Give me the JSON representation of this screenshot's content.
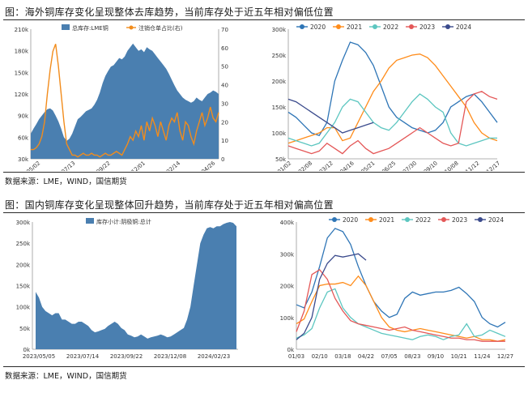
{
  "figure1": {
    "caption": "图：海外铜库存变化呈现整体去库趋势，当前库存处于近五年相对偏低位置",
    "source": "数据来源：LME，WIND，国信期货"
  },
  "figure2": {
    "caption": "图：国内铜库存变化呈现整体回升趋势，当前库存处于近五年相对偏高位置",
    "source": "数据来源：LME，WIND，国信期货"
  },
  "colors": {
    "blue_area": "#4a7fb0",
    "orange": "#f28c1c",
    "s2020": "#2e75b6",
    "s2021": "#ff8c1a",
    "s2022": "#5cc6c0",
    "s2023": "#e45757",
    "s2024": "#3a4a8c"
  },
  "chart_data": [
    {
      "id": "lme_total",
      "type": "area",
      "title": "",
      "y_unit": "k",
      "ylim": [
        30,
        210
      ],
      "y_ticks": [
        "30k",
        "60k",
        "90k",
        "120k",
        "150k",
        "180k",
        "210k"
      ],
      "y2lim": [
        0,
        70
      ],
      "y2_ticks": [
        "0",
        "10",
        "20",
        "30",
        "40",
        "50",
        "60",
        "70"
      ],
      "x_ticks": [
        "2023/05/02",
        "2023/07/13",
        "2023/09/22",
        "2023/12/01",
        "2024/02/14",
        "2024/04/26"
      ],
      "legend": [
        "总库存:LME铜",
        "注销仓单占比(右)"
      ],
      "series": [
        {
          "name": "总库存:LME铜",
          "axis": "left",
          "type": "area",
          "values": [
            65,
            72,
            78,
            85,
            90,
            95,
            99,
            100,
            97,
            90,
            82,
            72,
            60,
            55,
            58,
            65,
            75,
            85,
            88,
            92,
            96,
            98,
            100,
            105,
            112,
            122,
            135,
            145,
            152,
            158,
            160,
            165,
            170,
            168,
            172,
            180,
            185,
            190,
            185,
            180,
            182,
            178,
            185,
            182,
            180,
            175,
            170,
            165,
            160,
            155,
            148,
            140,
            132,
            125,
            120,
            115,
            112,
            110,
            108,
            110,
            115,
            112,
            110,
            115,
            120,
            122,
            125,
            123,
            120
          ]
        },
        {
          "name": "注销仓单占比(右)",
          "axis": "right",
          "type": "line",
          "values": [
            5,
            5,
            6,
            8,
            12,
            20,
            35,
            48,
            58,
            62,
            50,
            35,
            20,
            8,
            5,
            2,
            2,
            1,
            2,
            3,
            2,
            2,
            3,
            2,
            2,
            1,
            2,
            3,
            2,
            2,
            3,
            4,
            3,
            2,
            5,
            8,
            12,
            10,
            15,
            12,
            18,
            10,
            20,
            15,
            22,
            18,
            12,
            20,
            15,
            10,
            18,
            22,
            20,
            25,
            15,
            10,
            20,
            18,
            12,
            8,
            15,
            20,
            25,
            18,
            22,
            28,
            22,
            20,
            25
          ]
        }
      ]
    },
    {
      "id": "lme_seasonal",
      "type": "line",
      "ylim": [
        50,
        300
      ],
      "y_ticks": [
        "50k",
        "100k",
        "150k",
        "200k",
        "250k",
        "300k"
      ],
      "x_ticks": [
        "01/02",
        "02/08",
        "03/12",
        "04/16",
        "05/21",
        "06/25",
        "07/30",
        "09/10",
        "10/08",
        "11/12",
        "12/17"
      ],
      "series": [
        {
          "name": "2020",
          "values": [
            140,
            130,
            115,
            100,
            95,
            120,
            200,
            240,
            275,
            270,
            255,
            230,
            190,
            150,
            130,
            120,
            110,
            105,
            100,
            105,
            120,
            150,
            160,
            170,
            175,
            160,
            140,
            120
          ]
        },
        {
          "name": "2021",
          "values": [
            80,
            85,
            90,
            95,
            100,
            110,
            110,
            85,
            90,
            120,
            150,
            180,
            200,
            225,
            240,
            245,
            250,
            252,
            245,
            230,
            210,
            190,
            170,
            150,
            120,
            100,
            90,
            85
          ]
        },
        {
          "name": "2022",
          "values": [
            90,
            85,
            80,
            75,
            80,
            100,
            120,
            150,
            165,
            160,
            140,
            120,
            110,
            105,
            120,
            140,
            160,
            175,
            165,
            150,
            140,
            100,
            80,
            75,
            80,
            85,
            90,
            90
          ]
        },
        {
          "name": "2023",
          "values": [
            75,
            70,
            65,
            60,
            65,
            80,
            70,
            60,
            75,
            85,
            70,
            60,
            65,
            70,
            80,
            90,
            100,
            110,
            100,
            90,
            80,
            75,
            80,
            160,
            175,
            180,
            170,
            165
          ]
        },
        {
          "name": "2024",
          "values": [
            165,
            160,
            150,
            140,
            130,
            120,
            110,
            100,
            105,
            110,
            115,
            120
          ]
        }
      ]
    },
    {
      "id": "shfe_total",
      "type": "area",
      "ylim": [
        0,
        300
      ],
      "y_ticks": [
        "0k",
        "50k",
        "100k",
        "150k",
        "200k",
        "250k",
        "300k"
      ],
      "x_ticks": [
        "2023/05/05",
        "2023/07/14",
        "2023/09/22",
        "2023/12/08",
        "2024/02/23"
      ],
      "legend": [
        "库存小计:阴极铜:总计"
      ],
      "series": [
        {
          "name": "库存小计:阴极铜:总计",
          "values": [
            135,
            122,
            100,
            90,
            85,
            80,
            85,
            85,
            70,
            70,
            65,
            60,
            60,
            65,
            65,
            60,
            55,
            45,
            40,
            42,
            45,
            48,
            55,
            60,
            65,
            60,
            50,
            45,
            35,
            32,
            28,
            30,
            35,
            30,
            25,
            28,
            30,
            32,
            35,
            32,
            28,
            30,
            35,
            40,
            45,
            50,
            70,
            100,
            150,
            200,
            250,
            270,
            285,
            288,
            285,
            290,
            290,
            295,
            298,
            300,
            298,
            290
          ]
        }
      ]
    },
    {
      "id": "shfe_seasonal",
      "type": "line",
      "ylim": [
        0,
        400
      ],
      "y_ticks": [
        "0k",
        "100k",
        "200k",
        "300k",
        "400k"
      ],
      "x_ticks": [
        "01/03",
        "02/10",
        "03/18",
        "04/22",
        "07/05",
        "08/23",
        "09/10",
        "10/21",
        "11/24",
        "12/27"
      ],
      "series": [
        {
          "name": "2020",
          "values": [
            140,
            130,
            180,
            260,
            350,
            380,
            370,
            330,
            260,
            200,
            150,
            120,
            100,
            110,
            160,
            180,
            170,
            175,
            180,
            180,
            185,
            195,
            175,
            150,
            100,
            80,
            70,
            85
          ]
        },
        {
          "name": "2021",
          "values": [
            80,
            95,
            150,
            200,
            205,
            205,
            210,
            200,
            230,
            200,
            150,
            100,
            70,
            60,
            55,
            60,
            65,
            60,
            55,
            50,
            45,
            40,
            35,
            40,
            30,
            30,
            25,
            30
          ]
        },
        {
          "name": "2022",
          "values": [
            35,
            45,
            65,
            130,
            180,
            190,
            130,
            100,
            80,
            70,
            60,
            50,
            45,
            40,
            35,
            30,
            40,
            45,
            40,
            30,
            40,
            45,
            80,
            40,
            45,
            60,
            50,
            40
          ]
        },
        {
          "name": "2023",
          "values": [
            55,
            120,
            235,
            250,
            220,
            160,
            120,
            90,
            80,
            75,
            70,
            65,
            60,
            65,
            70,
            60,
            55,
            50,
            45,
            40,
            35,
            35,
            30,
            30,
            25,
            25,
            25,
            25
          ]
        },
        {
          "name": "2024",
          "values": [
            30,
            50,
            100,
            220,
            270,
            295,
            290,
            295,
            300,
            280
          ]
        }
      ]
    }
  ]
}
